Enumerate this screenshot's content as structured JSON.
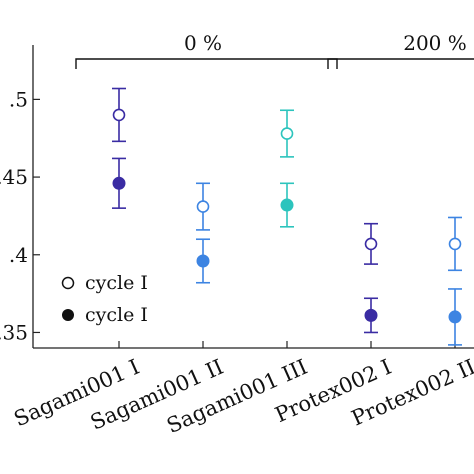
{
  "chart_data": {
    "type": "scatter",
    "error_bars": true,
    "categories": [
      "Sagami001 I",
      "Sagami001 II",
      "Sagami001 III",
      "Protex002 I",
      "Protex002 II"
    ],
    "y_ticks": [
      0.35,
      0.4,
      0.45,
      0.5
    ],
    "y_tick_labels": [
      ".35",
      ".4",
      ".45",
      ".5"
    ],
    "ylim": [
      0.34,
      0.535
    ],
    "groups": [
      {
        "label": "0 %",
        "from": 0,
        "to": 2
      },
      {
        "label": "200 %",
        "from": 3,
        "to": 4
      }
    ],
    "series": [
      {
        "name": "cycle I",
        "marker": "open",
        "values": [
          0.49,
          0.431,
          0.478,
          0.407,
          0.407
        ],
        "errors": [
          0.017,
          0.015,
          0.015,
          0.013,
          0.017
        ]
      },
      {
        "name": "cycle I",
        "marker": "filled",
        "values": [
          0.446,
          0.396,
          0.432,
          0.361,
          0.36
        ],
        "errors": [
          0.016,
          0.014,
          0.014,
          0.011,
          0.018
        ]
      }
    ],
    "colors": [
      "#3a2ca3",
      "#3d84e2",
      "#2cc4bd",
      "#3a2ca3",
      "#3d84e2"
    ],
    "legend_position": "bottom-left"
  }
}
